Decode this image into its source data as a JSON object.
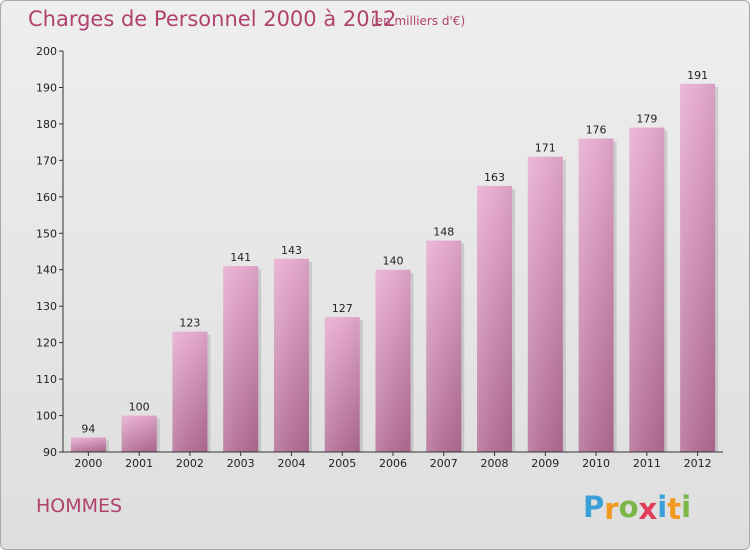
{
  "title": "Charges de Personnel 2000 à 2012",
  "subtitle": "(en milliers d'€)",
  "category": "HOMMES",
  "logo": {
    "letters": [
      "P",
      "r",
      "o",
      "x",
      "i",
      "t",
      "i"
    ],
    "colors": [
      "#3aa0d8",
      "#f29a1e",
      "#7ab648",
      "#e23e57",
      "#3aa0d8",
      "#f29a1e",
      "#7ab648"
    ]
  },
  "colors": {
    "title": "#b0426e",
    "bar_top": "#e6a9cf",
    "bar_bottom": "#b06a93",
    "axis": "#333333"
  },
  "chart_data": {
    "type": "bar",
    "categories": [
      "2000",
      "2001",
      "2002",
      "2003",
      "2004",
      "2005",
      "2006",
      "2007",
      "2008",
      "2009",
      "2010",
      "2011",
      "2012"
    ],
    "values": [
      94,
      100,
      123,
      141,
      143,
      127,
      140,
      148,
      163,
      171,
      176,
      179,
      191
    ],
    "title": "Charges de Personnel 2000 à 2012",
    "subtitle": "(en milliers d'€)",
    "ylim": [
      90,
      200
    ],
    "yticks": [
      90,
      100,
      110,
      120,
      130,
      140,
      150,
      160,
      170,
      180,
      190,
      200
    ],
    "data_labels": true,
    "grid": false
  }
}
